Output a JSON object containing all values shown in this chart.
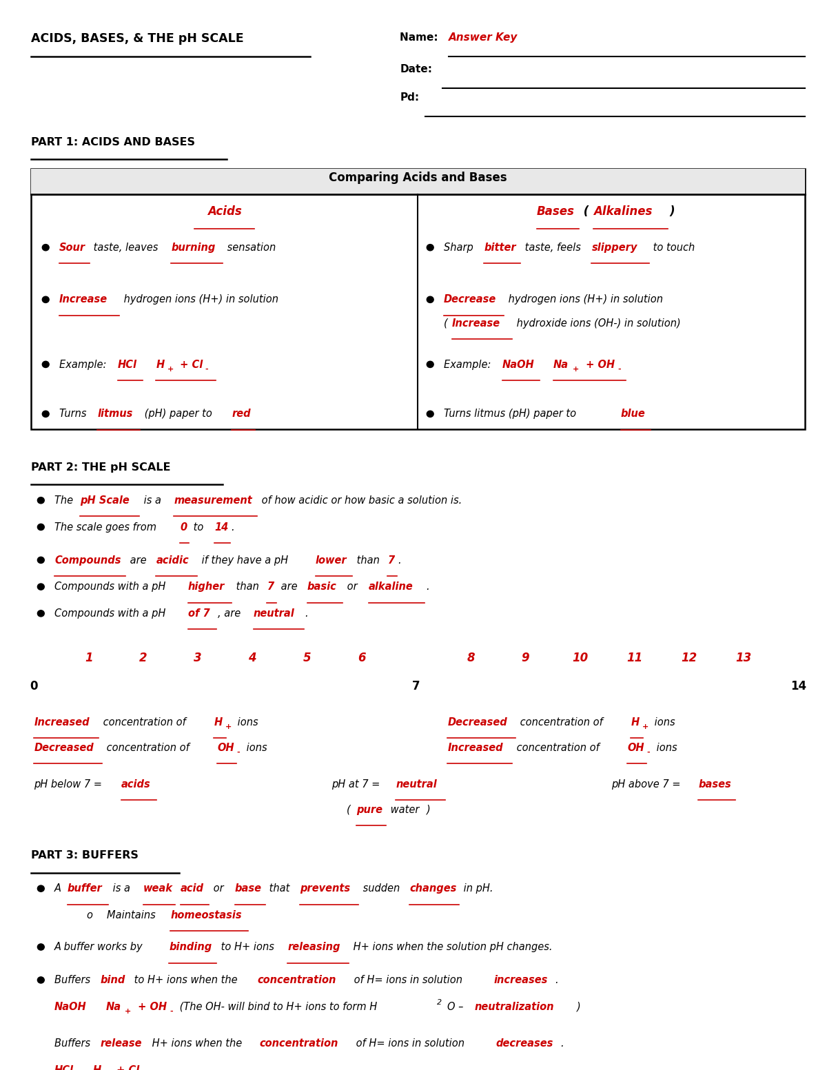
{
  "title": "ACIDS, BASES, & THE pH SCALE",
  "answer_key": "Answer Key",
  "bg_color": "#ffffff",
  "black": "#000000",
  "red": "#cc0000",
  "part1_title": "PART 1: ACIDS AND BASES",
  "part2_title": "PART 2: THE pH SCALE",
  "part3_title": "PART 3: BUFFERS",
  "table_title": "Comparing Acids and Bases"
}
